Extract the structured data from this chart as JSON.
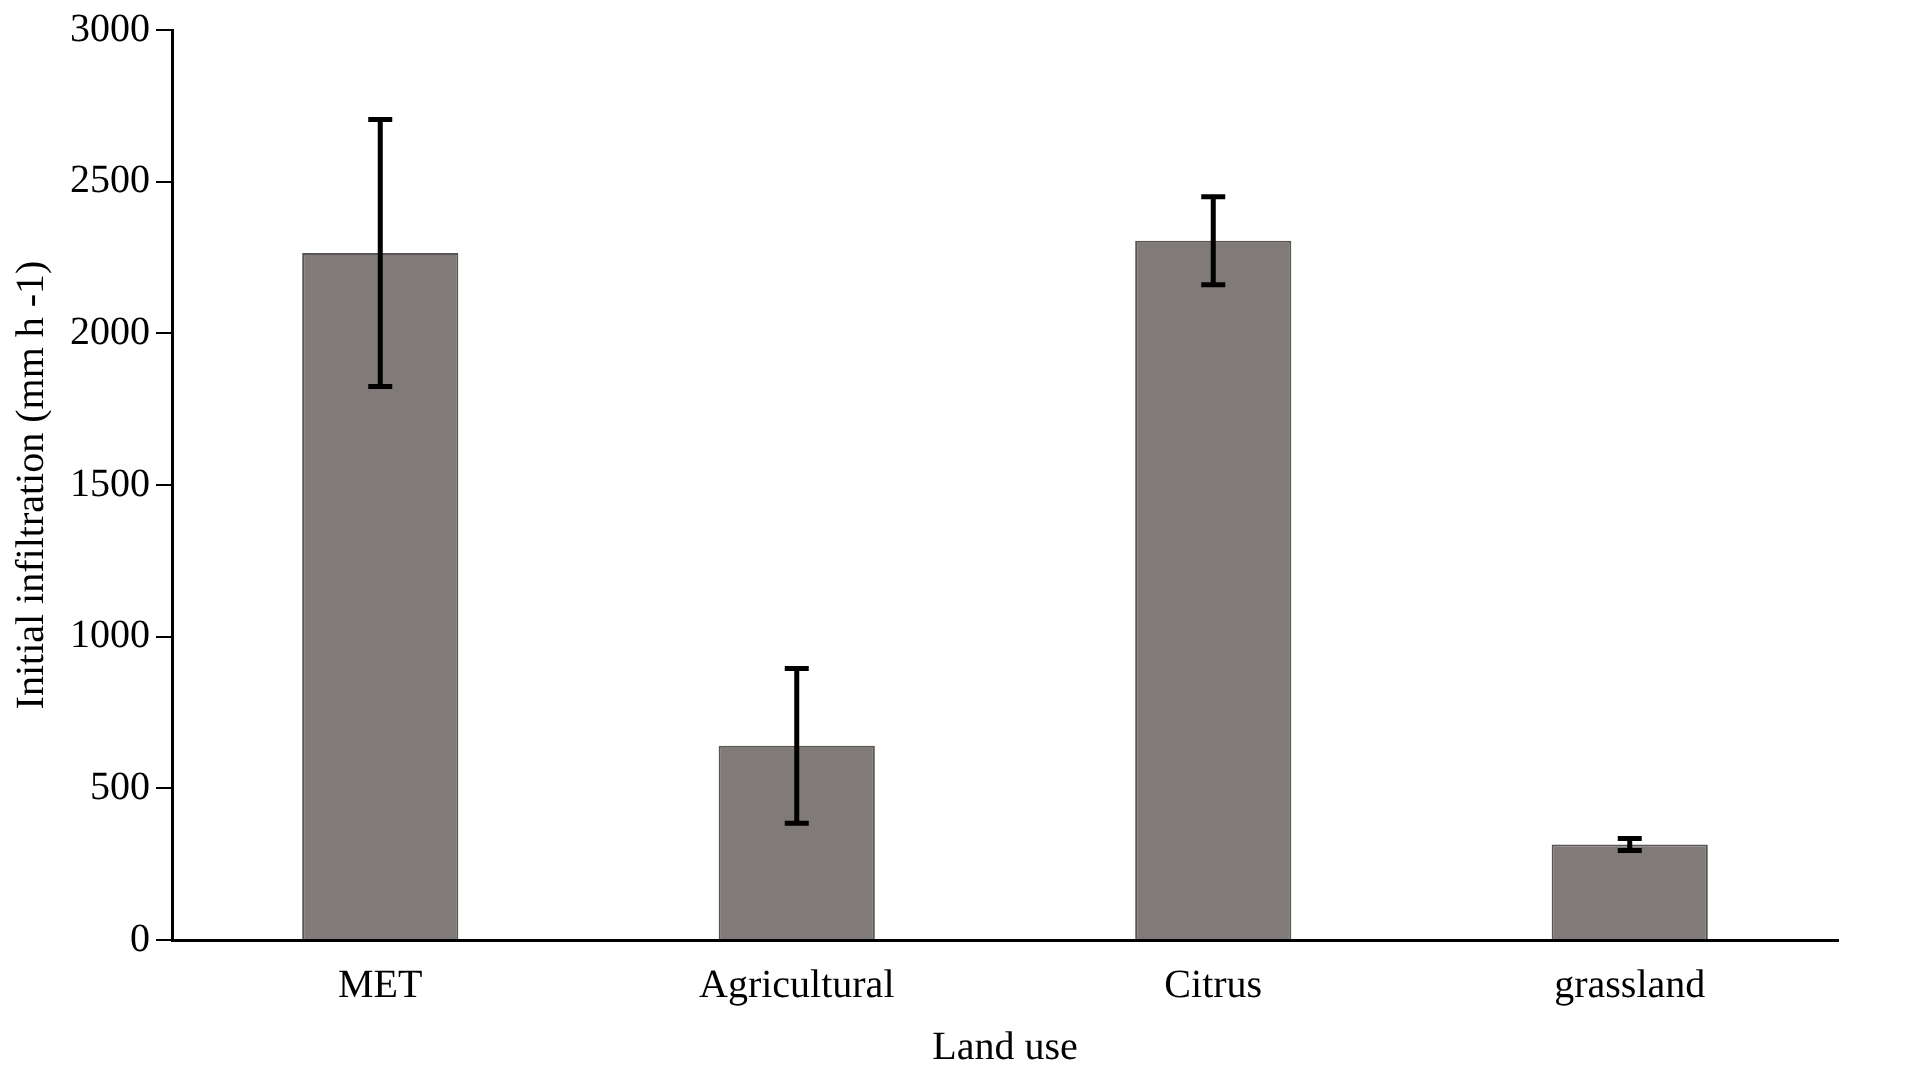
{
  "chart_data": {
    "type": "bar",
    "xlabel": "Land use",
    "ylabel": "Initial infiltration (mm h -1)",
    "categories": [
      "MET",
      "Agricultural",
      "Citrus",
      "grassland"
    ],
    "values": [
      2265,
      640,
      2305,
      315
    ],
    "errors": [
      440,
      255,
      145,
      20
    ],
    "color": "#807b78",
    "ylim": [
      0,
      3000
    ],
    "yticks": [
      0,
      500,
      1000,
      1500,
      2000,
      2500,
      3000
    ],
    "grid": false,
    "legend": false
  }
}
